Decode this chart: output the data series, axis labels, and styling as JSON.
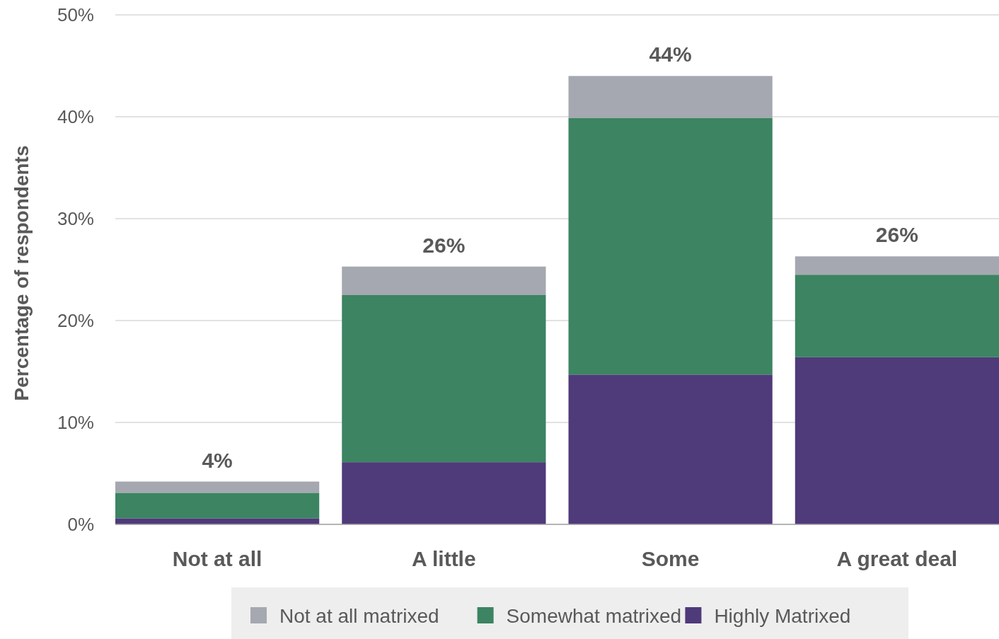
{
  "chart_data": {
    "type": "bar",
    "stacked": true,
    "ylabel": "Percentage of respondents",
    "categories": [
      "Not at all",
      "A little",
      "Some",
      "A great deal"
    ],
    "series": [
      {
        "name": "Highly Matrixed",
        "color": "#4f3a7a",
        "values": [
          0.6,
          6.1,
          14.7,
          16.4
        ]
      },
      {
        "name": "Somewhat matrixed",
        "color": "#3c8462",
        "values": [
          2.5,
          16.4,
          25.2,
          8.1
        ]
      },
      {
        "name": "Not at all matrixed",
        "color": "#a5a8b0",
        "values": [
          1.1,
          2.8,
          4.1,
          1.8
        ]
      }
    ],
    "ylim": [
      0,
      50
    ],
    "yticks": [
      {
        "value": 0,
        "label": "0%"
      },
      {
        "value": 10,
        "label": "10%"
      },
      {
        "value": 20,
        "label": "20%"
      },
      {
        "value": 30,
        "label": "30%"
      },
      {
        "value": 40,
        "label": "40%"
      },
      {
        "value": 50,
        "label": "50%"
      }
    ],
    "grid": "y",
    "legend": "bottom",
    "totals": [
      "4%",
      "26%",
      "44%",
      "26%"
    ]
  }
}
